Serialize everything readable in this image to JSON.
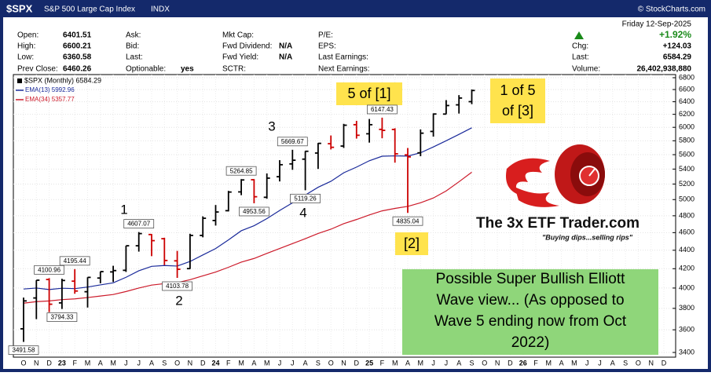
{
  "header": {
    "symbol": "$SPX",
    "name": "S&P 500 Large Cap Index",
    "exchange": "INDX",
    "source": "© StockCharts.com",
    "columns": [
      [
        {
          "label": "Open:",
          "value": "6401.51"
        },
        {
          "label": "High:",
          "value": "6600.21"
        },
        {
          "label": "Low:",
          "value": "6360.58"
        },
        {
          "label": "Prev Close:",
          "value": "6460.26"
        }
      ],
      [
        {
          "label": "Ask:"
        },
        {
          "label": "Bid:"
        },
        {
          "label": "Last:"
        },
        {
          "label": "Optionable:",
          "value": "yes"
        }
      ],
      [
        {
          "label": "Mkt Cap:"
        },
        {
          "label": "Fwd Dividend:",
          "value": "N/A"
        },
        {
          "label": "Fwd Yield:",
          "value": "N/A"
        },
        {
          "label": "SCTR:"
        }
      ],
      [
        {
          "label": "P/E:"
        },
        {
          "label": "EPS:"
        },
        {
          "label": "Last Earnings:"
        },
        {
          "label": "Next Earnings:"
        }
      ]
    ],
    "date": "Friday  12-Sep-2025",
    "change_pct": "+1.92%",
    "quote": [
      {
        "label": "Chg:",
        "value": "+124.03"
      },
      {
        "label": "Last:",
        "value": "6584.29"
      },
      {
        "label": "Volume:",
        "value": "26,402,938,880"
      }
    ]
  },
  "chart_data": {
    "type": "ohlc",
    "log_scale": true,
    "grid": true,
    "ylim": [
      3400,
      6800
    ],
    "yticks": [
      3400,
      3600,
      3800,
      4000,
      4200,
      4400,
      4600,
      4800,
      5000,
      5200,
      5400,
      5600,
      5800,
      6000,
      6200,
      6400,
      6600,
      6800
    ],
    "x_axis_labels": [
      "O",
      "N",
      "D",
      "23",
      "F",
      "M",
      "A",
      "M",
      "J",
      "J",
      "A",
      "S",
      "O",
      "N",
      "D",
      "24",
      "F",
      "M",
      "A",
      "M",
      "J",
      "J",
      "A",
      "S",
      "O",
      "N",
      "D",
      "25",
      "F",
      "M",
      "A",
      "M",
      "J",
      "J",
      "A",
      "S",
      "O",
      "N",
      "D",
      "26",
      "F",
      "M",
      "A",
      "M",
      "J",
      "J",
      "A",
      "S",
      "O",
      "N",
      "D"
    ],
    "price": {
      "name": "$SPX (Monthly) 6584.29",
      "up_color": "#000000",
      "down_color": "#cc0000",
      "open": [
        3609,
        3901,
        4087,
        3853,
        4070,
        3963,
        4102,
        4166,
        4183,
        4450,
        4578,
        4530,
        4284,
        4201,
        4568,
        4743,
        4862,
        5098,
        5257,
        5029,
        5297,
        5471,
        5537,
        5623,
        5757,
        5723,
        6040,
        5903,
        5969,
        5968,
        5597,
        5626,
        5938,
        6204,
        6350,
        6401.51
      ],
      "high": [
        3905,
        4080,
        4100.96,
        4095,
        4195.44,
        4110,
        4170,
        4231,
        4450,
        4607.07,
        4584,
        4541,
        4393,
        4587,
        4793,
        4932,
        5111,
        5264.85,
        5264,
        5341,
        5523,
        5669.67,
        5651,
        5767,
        5878,
        6053,
        6099,
        6128,
        6147.43,
        5986,
        5695,
        5968,
        6215,
        6427,
        6508,
        6600.21
      ],
      "low": [
        3491.58,
        3698,
        3764,
        3794.33,
        3943,
        3808,
        4048,
        4062,
        4166,
        4385,
        4335,
        4238,
        4103.78,
        4197,
        4546,
        4683,
        4853,
        5056,
        4953.56,
        5011,
        5234,
        5390,
        5119.26,
        5402,
        5674,
        5696,
        5832,
        5773,
        5837,
        5488,
        4835.04,
        5578,
        5861,
        6201,
        6212,
        6360.58
      ],
      "close": [
        3872,
        4080,
        3840,
        4077,
        3970,
        4109,
        4169,
        4180,
        4450,
        4589,
        4508,
        4288,
        4194,
        4568,
        4770,
        4846,
        5096,
        5254,
        5036,
        5278,
        5460,
        5522,
        5648,
        5762,
        5705,
        6032,
        5881,
        6040,
        5954,
        5612,
        5569,
        5912,
        6205,
        6339,
        6460,
        6584.29
      ]
    },
    "series": [
      {
        "name": "EMA(13) 5992.96",
        "color": "#1a2a9a",
        "values": [
          3990,
          4000,
          3985,
          3998,
          3994,
          4010,
          4032,
          4053,
          4110,
          4178,
          4225,
          4234,
          4228,
          4277,
          4348,
          4419,
          4516,
          4622,
          4681,
          4766,
          4865,
          4959,
          5057,
          5158,
          5236,
          5350,
          5427,
          5515,
          5578,
          5583,
          5580,
          5627,
          5710,
          5800,
          5894,
          5992.96
        ]
      },
      {
        "name": "EMA(34) 5357.77",
        "color": "#cc1a2a",
        "values": [
          3850,
          3865,
          3872,
          3885,
          3892,
          3905,
          3920,
          3935,
          3965,
          4000,
          4030,
          4045,
          4055,
          4085,
          4125,
          4165,
          4215,
          4270,
          4310,
          4365,
          4420,
          4475,
          4530,
          4590,
          4640,
          4705,
          4755,
          4810,
          4860,
          4890,
          4915,
          4960,
          5020,
          5110,
          5230,
          5357.77
        ]
      }
    ],
    "wave_labels": [
      "1",
      "2",
      "3",
      "4"
    ],
    "callouts": {
      "wave5": "5 of [1]",
      "wave2": "[2]",
      "wave3": [
        "1 of 5",
        "of [3]"
      ]
    },
    "note": [
      "Possible Super Bullish Elliott",
      "Wave view... (As opposed to",
      "Wave 5 ending now from Oct",
      "2022)"
    ],
    "logo": {
      "title": "The 3x ETF Trader.com",
      "tagline": "\"Buying dips...selling rips\""
    }
  }
}
